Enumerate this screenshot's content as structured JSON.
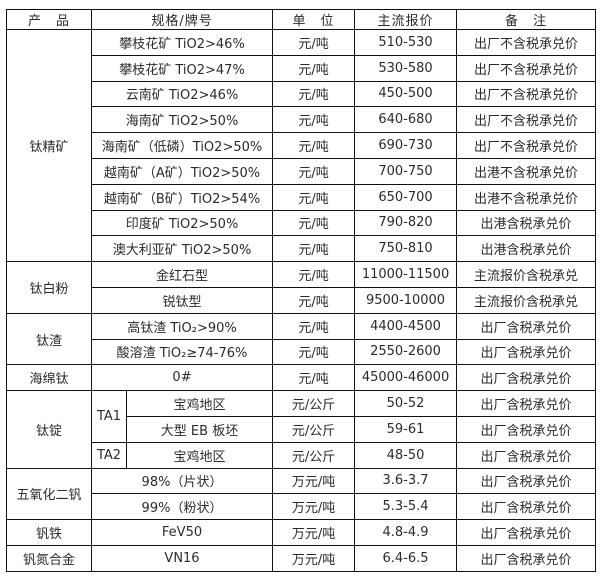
{
  "page": {
    "background": "#ffffff",
    "border_color": "#111111",
    "text_color": "#2b2b2b"
  },
  "table": {
    "headers": [
      "产　品",
      "规格/牌号",
      "单　位",
      "主流报价",
      "备　注"
    ],
    "sections": [
      {
        "product": "钛精矿",
        "rows": [
          {
            "spec": "攀枝花矿 TiO2>46%",
            "unit": "元/吨",
            "price": "510-530",
            "note": "出厂不含税承兑价"
          },
          {
            "spec": "攀枝花矿 TiO2>47%",
            "unit": "元/吨",
            "price": "530-580",
            "note": "出厂不含税承兑价"
          },
          {
            "spec": "云南矿 TiO2>46%",
            "unit": "元/吨",
            "price": "450-500",
            "note": "出厂不含税承兑价"
          },
          {
            "spec": "海南矿 TiO2>50%",
            "unit": "元/吨",
            "price": "640-680",
            "note": "出厂不含税承兑价"
          },
          {
            "spec": "海南矿（低磷）TiO2>50%",
            "unit": "元/吨",
            "price": "690-730",
            "note": "出厂不含税承兑价"
          },
          {
            "spec": "越南矿（A矿）TiO2>50%",
            "unit": "元/吨",
            "price": "700-750",
            "note": "出港不含税承兑价"
          },
          {
            "spec": "越南矿（B矿）TiO2>54%",
            "unit": "元/吨",
            "price": "650-700",
            "note": "出港不含税承兑价"
          },
          {
            "spec": "印度矿 TiO2>50%",
            "unit": "元/吨",
            "price": "790-820",
            "note": "出港含税承兑价"
          },
          {
            "spec": "澳大利亚矿 TiO2>50%",
            "unit": "元/吨",
            "price": "750-810",
            "note": "出港含税承兑价"
          }
        ]
      },
      {
        "product": "钛白粉",
        "rows": [
          {
            "spec": "金红石型",
            "unit": "元/吨",
            "price": "11000-11500",
            "note": "主流报价含税承兑"
          },
          {
            "spec": "锐钛型",
            "unit": "元/吨",
            "price": "9500-10000",
            "note": "主流报价含税承兑"
          }
        ]
      },
      {
        "product": "钛渣",
        "rows": [
          {
            "spec": "高钛渣 TiO₂>90%",
            "unit": "元/吨",
            "price": "4400-4500",
            "note": "出厂含税承兑价"
          },
          {
            "spec": "酸溶渣 TiO₂≥74-76%",
            "unit": "元/吨",
            "price": "2550-2600",
            "note": "出厂含税承兑价"
          }
        ]
      },
      {
        "product": "海绵钛",
        "rows": [
          {
            "spec": "0#",
            "unit": "元/吨",
            "price": "45000-46000",
            "note": "出厂含税承兑价"
          }
        ]
      },
      {
        "product": "钛锭",
        "rows": [
          {
            "grade": "TA1",
            "grade_rowspan": 2,
            "spec": "宝鸡地区",
            "unit": "元/公斤",
            "price": "50-52",
            "note": "出厂含税承兑价"
          },
          {
            "spec": "大型 EB 板坯",
            "unit": "元/公斤",
            "price": "59-61",
            "note": "出厂含税承兑价"
          },
          {
            "grade": "TA2",
            "grade_rowspan": 1,
            "spec": "宝鸡地区",
            "unit": "元/公斤",
            "price": "48-50",
            "note": "出厂含税承兑价"
          }
        ]
      },
      {
        "product": "五氧化二钒",
        "rows": [
          {
            "spec": "98%（片状）",
            "unit": "万元/吨",
            "price": "3.6-3.7",
            "note": "出厂含税承兑价"
          },
          {
            "spec": "99%（粉状）",
            "unit": "万元/吨",
            "price": "5.3-5.4",
            "note": "出厂含税承兑价"
          }
        ]
      },
      {
        "product": "钒铁",
        "rows": [
          {
            "spec": "FeV50",
            "unit": "万元/吨",
            "price": "4.8-4.9",
            "note": "出厂含税承兑价"
          }
        ]
      },
      {
        "product": "钒氮合金",
        "rows": [
          {
            "spec": "VN16",
            "unit": "万元/吨",
            "price": "6.4-6.5",
            "note": "出厂含税承兑价"
          }
        ]
      }
    ]
  }
}
